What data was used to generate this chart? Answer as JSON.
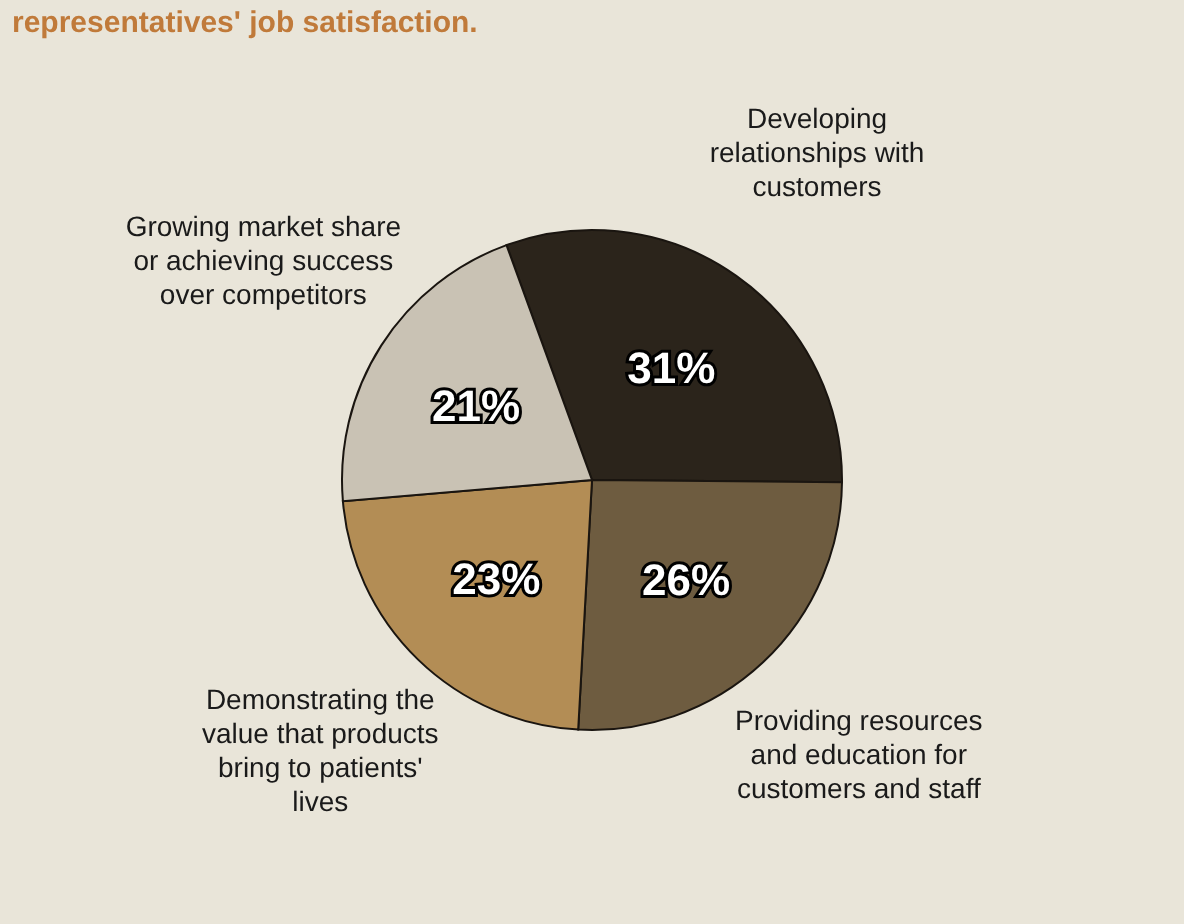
{
  "chart_data": {
    "type": "pie",
    "title": "representatives' job satisfaction.",
    "categories": [
      "Developing relationships with customers",
      "Providing resources and education for customers and staff",
      "Demonstrating the value that products bring to patients' lives",
      "Growing market share or achieving success over competitors"
    ],
    "values": [
      31,
      26,
      23,
      21
    ],
    "colors": [
      "#2b241b",
      "#6e5c40",
      "#b38d55",
      "#c9c2b4"
    ],
    "value_labels": [
      "31%",
      "26%",
      "23%",
      "21%"
    ]
  }
}
